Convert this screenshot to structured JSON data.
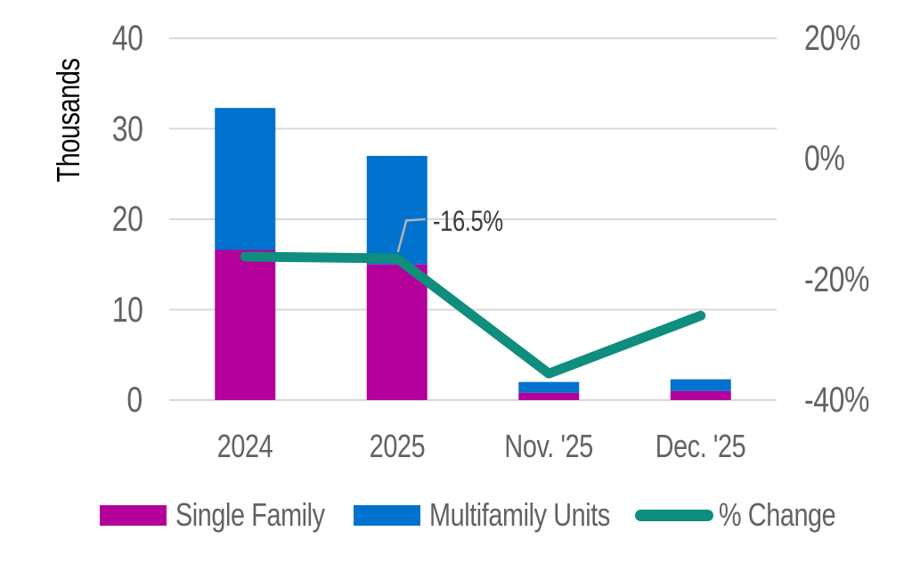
{
  "chart_data": {
    "type": "bar",
    "subtype": "stacked-bars-with-line-overlay",
    "title": "",
    "categories": [
      "2024",
      "2025",
      "Nov. '25",
      "Dec. '25"
    ],
    "series": [
      {
        "name": "Single Family",
        "type": "bar",
        "stack": "units",
        "axis": "left",
        "color": "#B4009B",
        "values": [
          16.6,
          15.0,
          0.8,
          1.0
        ]
      },
      {
        "name": "Multifamily Units",
        "type": "bar",
        "stack": "units",
        "axis": "left",
        "color": "#0072CE",
        "values": [
          15.7,
          12.0,
          1.2,
          1.3
        ]
      },
      {
        "name": "% Change",
        "type": "line",
        "axis": "right",
        "color": "#0F8D7D",
        "values": [
          -16.2,
          -16.5,
          -35.6,
          -26.0
        ]
      }
    ],
    "left_axis": {
      "title": "Thousands",
      "tick_labels": [
        "40",
        "30",
        "20",
        "10",
        "0"
      ],
      "tick_values": [
        40,
        30,
        20,
        10,
        0
      ],
      "range": [
        0,
        40
      ],
      "gridlines": true
    },
    "right_axis": {
      "tick_labels": [
        "20%",
        "0%",
        "-20%",
        "-40%"
      ],
      "tick_values": [
        20,
        0,
        -20,
        -40
      ],
      "range": [
        -40,
        20
      ]
    },
    "annotation": {
      "text": "-16.5%",
      "series": "% Change",
      "category": "2025",
      "category_index": 1,
      "value": -16.5
    },
    "legend": {
      "position": "bottom",
      "items": [
        "Single Family",
        "Multifamily Units",
        "% Change"
      ]
    }
  },
  "colors": {
    "single_family": "#B4009B",
    "multifamily": "#0072CE",
    "pct_change": "#0F8D7D",
    "gridline": "#D8D8D8",
    "axis_text": "#606264",
    "annotation_text": "#3B3B3D",
    "callout_line": "#B3B3B3",
    "background": "#FFFFFF"
  }
}
